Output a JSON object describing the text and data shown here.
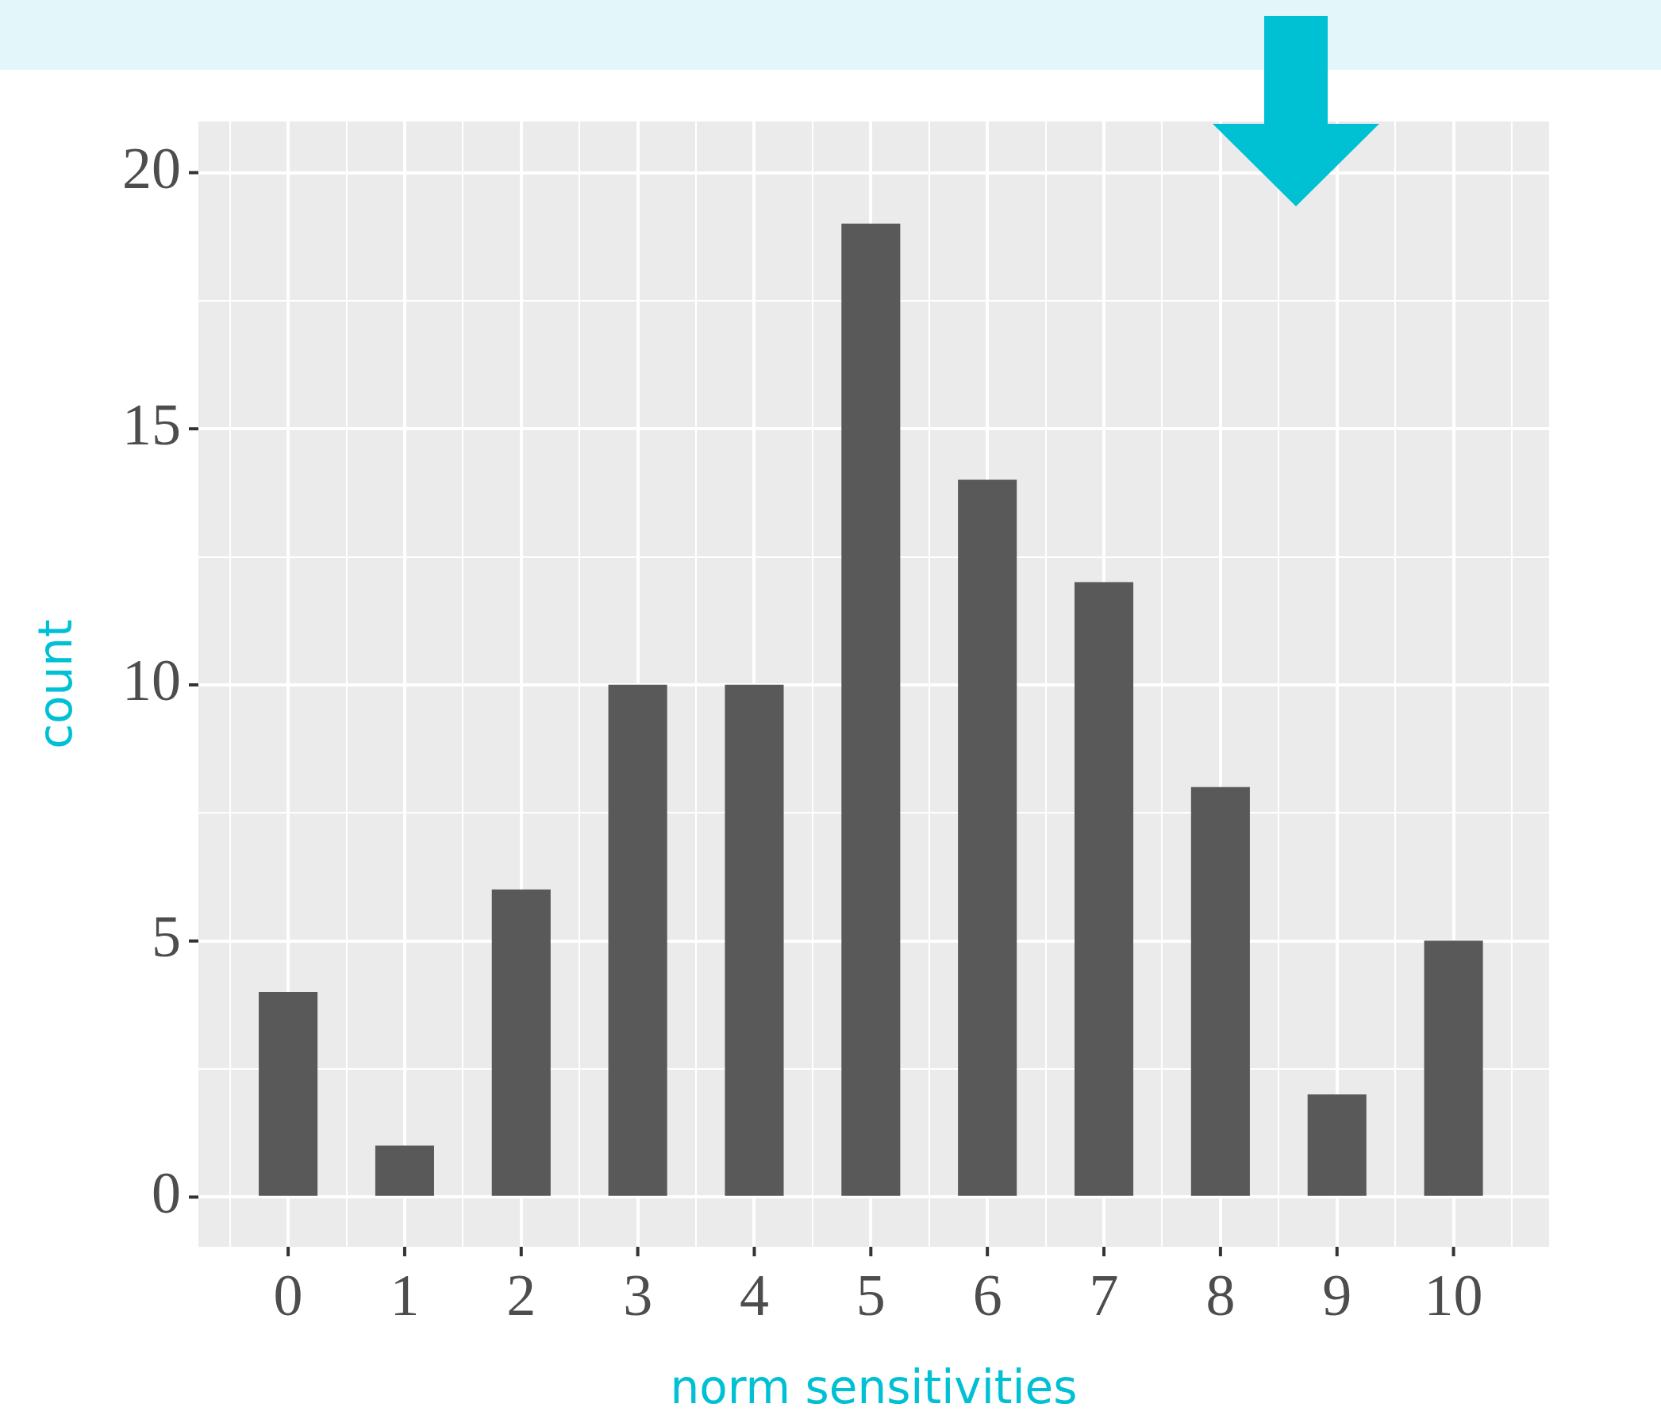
{
  "chart_data": {
    "type": "bar",
    "xlabel": "norm sensitivities",
    "ylabel": "count",
    "x": [
      0,
      1,
      2,
      3,
      4,
      5,
      6,
      7,
      8,
      9,
      10
    ],
    "values": [
      4,
      1,
      6,
      10,
      10,
      19,
      14,
      12,
      8,
      2,
      5
    ],
    "color": "#595959",
    "xlim": [
      -0.77,
      10.82
    ],
    "ylim": [
      -0.97,
      21
    ],
    "xticks": [
      {
        "value": -0.5,
        "label": null
      },
      0,
      {
        "value": 0.5,
        "label": null
      },
      1,
      {
        "value": 1.5,
        "label": null
      },
      2,
      {
        "value": 2.5,
        "label": null
      },
      3,
      {
        "value": 3.5,
        "label": null
      },
      4,
      {
        "value": 4.5,
        "label": null
      },
      5,
      {
        "value": 5.5,
        "label": null
      },
      6,
      {
        "value": 6.5,
        "label": null
      },
      7,
      {
        "value": 7.5,
        "label": null
      },
      8,
      {
        "value": 8.5,
        "label": null
      },
      9,
      {
        "value": 9.5,
        "label": null
      },
      10,
      {
        "value": 10.5,
        "label": null
      }
    ],
    "yticks": [
      0,
      {
        "value": 2.5,
        "label": null
      },
      5,
      {
        "value": 7.5,
        "label": null
      },
      10,
      {
        "value": 12.5,
        "label": null
      },
      15,
      {
        "value": 17.5,
        "label": null
      },
      20
    ],
    "grid": true
  }
}
